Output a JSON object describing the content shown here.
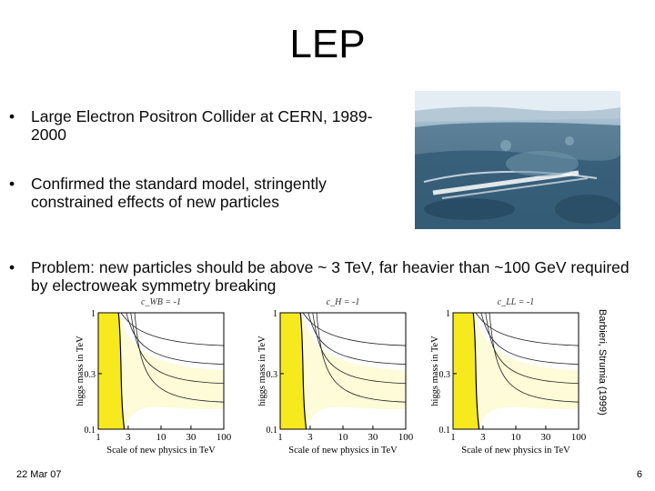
{
  "slide": {
    "title": "LEP",
    "bullets": [
      {
        "marker": "•",
        "text": "Large Electron Positron Collider at CERN, 1989-2000"
      },
      {
        "marker": "•",
        "text": "Confirmed the standard model, stringently constrained effects of new particles"
      },
      {
        "marker": "•",
        "text": "Problem: new particles should be above ~ 3 TeV, far heavier than ~100 GeV required by electroweak symmetry breaking"
      }
    ],
    "footer_date": "22 Mar 07",
    "page_number": "6",
    "credit": "Barbieri, Strumia (1999)"
  },
  "chart_data": [
    {
      "type": "contour",
      "title": "c_WB = -1",
      "xlabel": "Scale of new physics in TeV",
      "ylabel": "higgs mass in TeV",
      "x_scale": "log",
      "y_scale": "log",
      "xlim": [
        1,
        100
      ],
      "ylim": [
        0.1,
        1
      ],
      "x_ticks": [
        "1",
        "3",
        "10",
        "30",
        "100"
      ],
      "y_ticks": [
        "1",
        "0.3",
        "0.1"
      ],
      "colors": {
        "excluded": "#f6ea1e",
        "contour_fill": "#fdfbd8"
      }
    },
    {
      "type": "contour",
      "title": "c_H = -1",
      "xlabel": "Scale of new physics in TeV",
      "ylabel": "higgs mass in TeV",
      "x_scale": "log",
      "y_scale": "log",
      "xlim": [
        1,
        100
      ],
      "ylim": [
        0.1,
        1
      ],
      "x_ticks": [
        "1",
        "3",
        "10",
        "30",
        "100"
      ],
      "y_ticks": [
        "1",
        "0.3",
        "0.1"
      ],
      "colors": {
        "excluded": "#f6ea1e",
        "contour_fill": "#fdfbd8"
      }
    },
    {
      "type": "contour",
      "title": "c_LL = -1",
      "xlabel": "Scale of new physics in TeV",
      "ylabel": "higgs mass in TeV",
      "x_scale": "log",
      "y_scale": "log",
      "xlim": [
        1,
        100
      ],
      "ylim": [
        0.1,
        1
      ],
      "x_ticks": [
        "1",
        "3",
        "10",
        "30",
        "100"
      ],
      "y_ticks": [
        "1",
        "0.3",
        "0.1"
      ],
      "colors": {
        "excluded": "#f6ea1e",
        "contour_fill": "#fdfbd8"
      }
    }
  ]
}
